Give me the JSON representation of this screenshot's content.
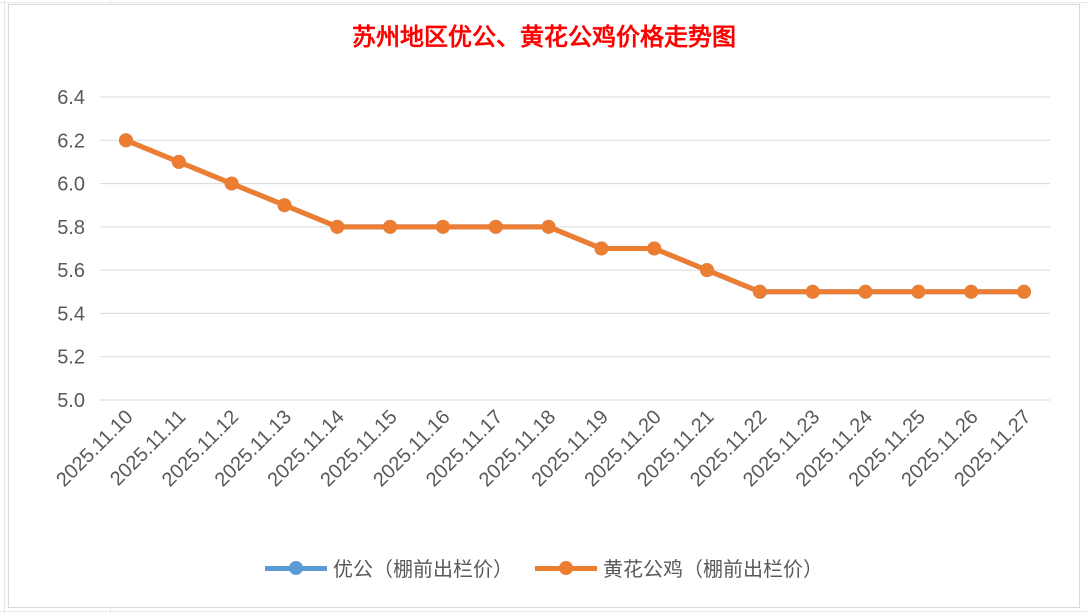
{
  "chart_data": {
    "type": "line",
    "title": "苏州地区优公、黄花公鸡价格走势图",
    "title_color": "#ff0000",
    "xlabel": "",
    "ylabel": "",
    "categories": [
      "2025.11.10",
      "2025.11.11",
      "2025.11.12",
      "2025.11.13",
      "2025.11.14",
      "2025.11.15",
      "2025.11.16",
      "2025.11.17",
      "2025.11.18",
      "2025.11.19",
      "2025.11.20",
      "2025.11.21",
      "2025.11.22",
      "2025.11.23",
      "2025.11.24",
      "2025.11.25",
      "2025.11.26",
      "2025.11.27"
    ],
    "y_ticks": [
      "5.0",
      "5.2",
      "5.4",
      "5.6",
      "5.8",
      "6.0",
      "6.2",
      "6.4"
    ],
    "ylim": [
      5.0,
      6.4
    ],
    "grid": true,
    "legend_position": "bottom",
    "series": [
      {
        "name": "优公（棚前出栏价）",
        "color": "#5b9bd5",
        "values": [
          6.2,
          6.1,
          6.0,
          5.9,
          5.8,
          5.8,
          5.8,
          5.8,
          5.8,
          5.7,
          5.7,
          5.6,
          5.5,
          5.5,
          5.5,
          5.5,
          5.5,
          5.5
        ]
      },
      {
        "name": "黄花公鸡（棚前出栏价）",
        "color": "#ed7d31",
        "values": [
          6.2,
          6.1,
          6.0,
          5.9,
          5.8,
          5.8,
          5.8,
          5.8,
          5.8,
          5.7,
          5.7,
          5.6,
          5.5,
          5.5,
          5.5,
          5.5,
          5.5,
          5.5
        ]
      }
    ]
  }
}
